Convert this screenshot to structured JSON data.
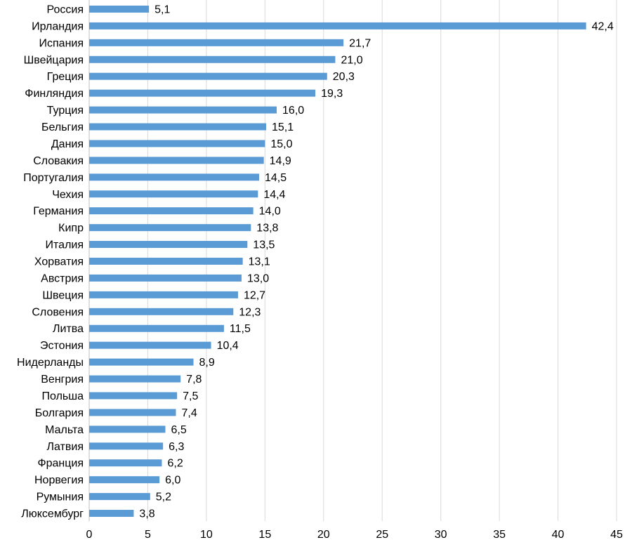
{
  "chart_data": {
    "type": "bar",
    "orientation": "horizontal",
    "categories": [
      "Россия",
      "Ирландия",
      "Испания",
      "Швейцария",
      "Греция",
      "Финляндия",
      "Турция",
      "Бельгия",
      "Дания",
      "Словакия",
      "Португалия",
      "Чехия",
      "Германия",
      "Кипр",
      "Италия",
      "Хорватия",
      "Австрия",
      "Швеция",
      "Словения",
      "Литва",
      "Эстония",
      "Нидерланды",
      "Венгрия",
      "Польша",
      "Болгария",
      "Мальта",
      "Латвия",
      "Франция",
      "Норвегия",
      "Румыния",
      "Люксембург"
    ],
    "values": [
      5.1,
      42.4,
      21.7,
      21.0,
      20.3,
      19.3,
      16.0,
      15.1,
      15.0,
      14.9,
      14.5,
      14.4,
      14.0,
      13.8,
      13.5,
      13.1,
      13.0,
      12.7,
      12.3,
      11.5,
      10.4,
      8.9,
      7.8,
      7.5,
      7.4,
      6.5,
      6.3,
      6.2,
      6.0,
      5.2,
      3.8
    ],
    "value_labels": [
      "5,1",
      "42,4",
      "21,7",
      "21,0",
      "20,3",
      "19,3",
      "16,0",
      "15,1",
      "15,0",
      "14,9",
      "14,5",
      "14,4",
      "14,0",
      "13,8",
      "13,5",
      "13,1",
      "13,0",
      "12,7",
      "12,3",
      "11,5",
      "10,4",
      "8,9",
      "7,8",
      "7,5",
      "7,4",
      "6,5",
      "6,3",
      "6,2",
      "6,0",
      "5,2",
      "3,8"
    ],
    "xlim": [
      0,
      45
    ],
    "x_ticks": [
      0,
      5,
      10,
      15,
      20,
      25,
      30,
      35,
      40,
      45
    ],
    "grid": "vertical",
    "bar_color": "#5b9bd5",
    "title": "",
    "xlabel": "",
    "ylabel": ""
  }
}
